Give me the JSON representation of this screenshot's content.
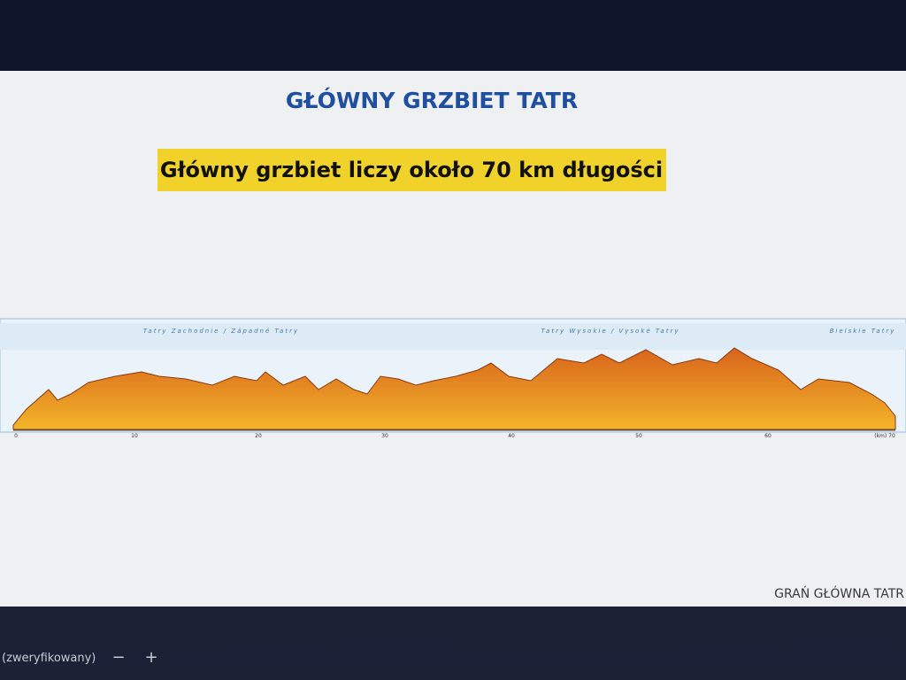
{
  "slide": {
    "title": "GŁÓWNY GRZBIET TATR",
    "highlight": "Główny grzbiet liczy około 70 km długości",
    "footer": "GRAŃ GŁÓWNA TATR"
  },
  "profile": {
    "regions": [
      "Tatry Zachodnie / Západné Tatry",
      "Tatry Wysokie / Vysoké Tatry",
      "Bielskie Tatry"
    ],
    "x_labels": [
      "0",
      "10",
      "20",
      "30",
      "40",
      "50",
      "60",
      "(km) 70"
    ]
  },
  "statusbar": {
    "text": "(zweryfikowany)",
    "minus": "−",
    "plus": "+"
  }
}
